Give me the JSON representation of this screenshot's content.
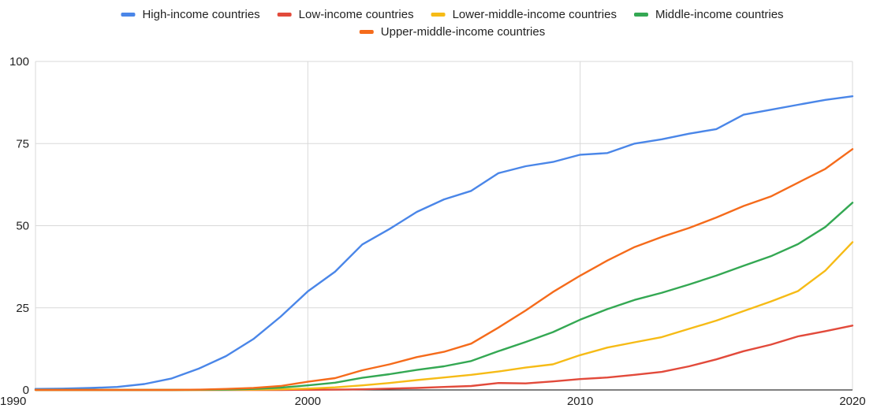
{
  "chart_data": {
    "type": "line",
    "title": "",
    "xlabel": "",
    "ylabel": "",
    "xlim": [
      1990,
      2020
    ],
    "ylim": [
      0,
      100
    ],
    "x_ticks": [
      "1990",
      "2000",
      "2010",
      "2020"
    ],
    "y_ticks": [
      "0",
      "25",
      "50",
      "75",
      "100"
    ],
    "grid": true,
    "legend_position": "top",
    "x": [
      1990,
      1991,
      1992,
      1993,
      1994,
      1995,
      1996,
      1997,
      1998,
      1999,
      2000,
      2001,
      2002,
      2003,
      2004,
      2005,
      2006,
      2007,
      2008,
      2009,
      2010,
      2011,
      2012,
      2013,
      2014,
      2015,
      2016,
      2017,
      2018,
      2019,
      2020
    ],
    "series": [
      {
        "name": "High-income countries",
        "color": "#4a86e8",
        "values": [
          0.3,
          0.4,
          0.6,
          0.9,
          1.8,
          3.5,
          6.5,
          10.3,
          15.5,
          22.3,
          30.0,
          36.0,
          44.3,
          49.0,
          54.2,
          58.0,
          60.6,
          66.0,
          68.1,
          69.4,
          71.6,
          72.1,
          75.0,
          76.3,
          78.0,
          79.4,
          83.8,
          85.3,
          86.8,
          88.3,
          89.4
        ]
      },
      {
        "name": "Low-income countries",
        "color": "#e24a3b",
        "values": [
          0,
          0,
          0,
          0,
          0,
          0,
          0,
          0,
          0,
          0,
          0.05,
          0.1,
          0.2,
          0.4,
          0.6,
          0.9,
          1.2,
          2.1,
          2.0,
          2.6,
          3.3,
          3.8,
          4.6,
          5.5,
          7.2,
          9.3,
          11.8,
          13.8,
          16.3,
          17.9,
          19.6
        ]
      },
      {
        "name": "Lower-middle-income countries",
        "color": "#f6bb16",
        "values": [
          0,
          0,
          0,
          0,
          0,
          0,
          0,
          0.05,
          0.1,
          0.2,
          0.4,
          0.8,
          1.4,
          2.1,
          3.0,
          3.8,
          4.6,
          5.6,
          6.8,
          7.8,
          10.6,
          12.9,
          14.5,
          16.1,
          18.6,
          21.1,
          24.0,
          26.9,
          30.1,
          36.3,
          45.0
        ]
      },
      {
        "name": "Middle-income countries",
        "color": "#34a853",
        "values": [
          0,
          0,
          0,
          0,
          0,
          0,
          0.05,
          0.1,
          0.3,
          0.7,
          1.4,
          2.2,
          3.7,
          4.8,
          6.1,
          7.2,
          8.8,
          11.8,
          14.6,
          17.6,
          21.4,
          24.6,
          27.4,
          29.6,
          32.1,
          34.8,
          37.8,
          40.7,
          44.4,
          49.6,
          57.0
        ]
      },
      {
        "name": "Upper-middle-income countries",
        "color": "#f56b1b",
        "values": [
          0,
          0,
          0,
          0,
          0,
          0,
          0.1,
          0.3,
          0.6,
          1.2,
          2.5,
          3.6,
          6.0,
          7.8,
          10.0,
          11.6,
          14.1,
          19.0,
          24.2,
          29.8,
          34.8,
          39.4,
          43.5,
          46.6,
          49.3,
          52.5,
          56.0,
          58.9,
          63.1,
          67.3,
          73.3
        ]
      }
    ]
  }
}
